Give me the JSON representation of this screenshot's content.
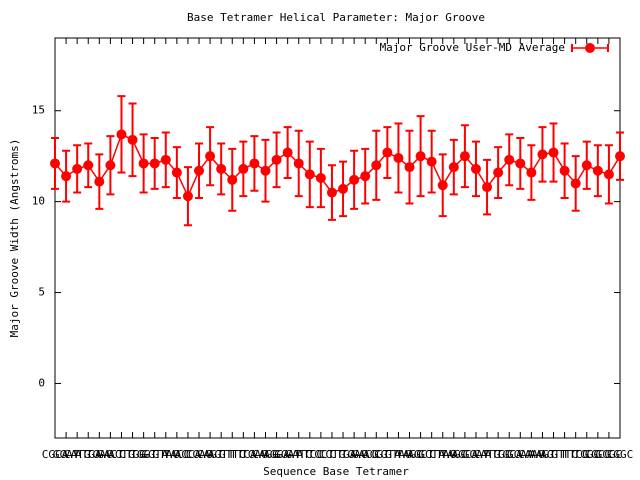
{
  "chart_data": {
    "type": "errorline",
    "title": "Base Tetramer Helical Parameter: Major Groove",
    "xlabel": "Sequence Base Tetramer",
    "ylabel": "Major Groove Width (Angstroms)",
    "categories": [
      "CGCA",
      "GCAT",
      "CATG",
      "ATGA",
      "TGAC",
      "GACT",
      "ACTG",
      "CTGG",
      "TGGT",
      "GGTA",
      "GTAC",
      "TACC",
      "ACCA",
      "CCAG",
      "CAGT",
      "AGTT",
      "GTTC",
      "TTCA",
      "TCAG",
      "CAGG",
      "AGGA",
      "GGAT",
      "GATC",
      "ATCC",
      "TCCT",
      "CCTG",
      "CTGA",
      "TGAC",
      "GACG",
      "ACGT",
      "CGTA",
      "GTAG",
      "TAGC",
      "AGCT",
      "GCTA",
      "CTAG",
      "TAGC",
      "AGCA",
      "GCAT",
      "CATG",
      "ATGC",
      "TGCA",
      "GCAA",
      "CAAG",
      "AAGT",
      "AGTT",
      "GTTC",
      "TTCG",
      "TCGC",
      "CGCG",
      "GCGC",
      "CGGC"
    ],
    "series": [
      {
        "name": "Major Groove User-MD Average",
        "color": "#ff0000",
        "values": [
          12.1,
          11.4,
          11.8,
          12.0,
          11.1,
          12.0,
          13.7,
          13.4,
          12.1,
          12.1,
          12.3,
          11.6,
          10.3,
          11.7,
          12.5,
          11.8,
          11.2,
          11.8,
          12.1,
          11.7,
          12.3,
          12.7,
          12.1,
          11.5,
          11.3,
          10.5,
          10.7,
          11.2,
          11.4,
          12.0,
          12.7,
          12.4,
          11.9,
          12.5,
          12.2,
          10.9,
          11.9,
          12.5,
          11.8,
          10.8,
          11.6,
          12.3,
          12.1,
          11.6,
          12.6,
          12.7,
          11.7,
          11.0,
          12.0,
          11.7,
          11.5,
          12.5
        ],
        "errors": [
          1.4,
          1.4,
          1.3,
          1.2,
          1.5,
          1.6,
          2.1,
          2.0,
          1.6,
          1.4,
          1.5,
          1.4,
          1.6,
          1.5,
          1.6,
          1.4,
          1.7,
          1.5,
          1.5,
          1.7,
          1.5,
          1.4,
          1.8,
          1.8,
          1.6,
          1.5,
          1.5,
          1.6,
          1.5,
          1.9,
          1.4,
          1.9,
          2.0,
          2.2,
          1.7,
          1.7,
          1.5,
          1.7,
          1.5,
          1.5,
          1.4,
          1.4,
          1.4,
          1.5,
          1.5,
          1.6,
          1.5,
          1.5,
          1.3,
          1.4,
          1.6,
          1.3
        ]
      }
    ],
    "ylim": [
      -3,
      19
    ],
    "yticks": [
      0,
      5,
      10,
      15
    ],
    "legend": "top-right"
  }
}
